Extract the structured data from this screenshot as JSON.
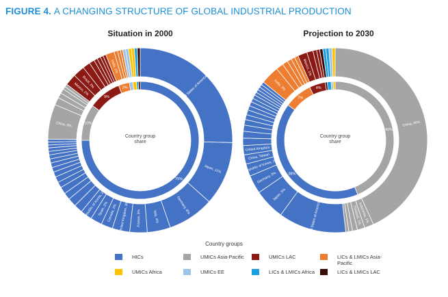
{
  "figure": {
    "number": "FIGURE 4.",
    "title": "A CHANGING STRUCTURE OF GLOBAL INDUSTRIAL PRODUCTION"
  },
  "colors": {
    "HICs": "#4472c4",
    "UMICs Asia-Pacific": "#a5a5a5",
    "UMICs LAC": "#8b1a14",
    "LICs & LMICs Asia-Pacific": "#ed7d31",
    "UMICs Africa": "#ffc000",
    "UMICs EE": "#9dc3e6",
    "LICs & LMICs Africa": "#1ba1e2",
    "LICs & LMICs LAC": "#3a0b07"
  },
  "legend": {
    "title": "Country groups",
    "items": [
      "HICs",
      "UMICs Asia-Pacific",
      "UMICs LAC",
      "LICs & LMICs Asia-Pacific",
      "UMICs Africa",
      "UMICs EE",
      "LICs & LMICs Africa",
      "LICs & LMICs LAC"
    ]
  },
  "chart_data": [
    {
      "type": "donut",
      "title": "Situation in 2000",
      "center_label": [
        "Country group",
        "share"
      ],
      "inner_ring": [
        {
          "group": "HICs",
          "value": 75,
          "label": "75%"
        },
        {
          "group": "UMICs Asia-Pacific",
          "value": 10,
          "label": "10%"
        },
        {
          "group": "UMICs LAC",
          "value": 9,
          "label": "9%"
        },
        {
          "group": "LICs & LMICs Asia-Pacific",
          "value": 3,
          "label": "3%"
        },
        {
          "group": "UMICs EE",
          "value": 1,
          "label": ""
        },
        {
          "group": "UMICs Africa",
          "value": 1,
          "label": ""
        },
        {
          "group": "LICs & LMICs Africa",
          "value": 0.5,
          "label": ""
        },
        {
          "group": "LICs & LMICs LAC",
          "value": 0.5,
          "label": ""
        }
      ],
      "outer_ring": [
        {
          "group": "HICs",
          "value": 25,
          "label": "United States of America, 25%"
        },
        {
          "group": "HICs",
          "value": 11,
          "label": "Japan, 11%"
        },
        {
          "group": "HICs",
          "value": 8,
          "label": "Germany, 8%"
        },
        {
          "group": "HICs",
          "value": 4,
          "label": "Italy, 4%"
        },
        {
          "group": "HICs",
          "value": 3,
          "label": "France, 3%"
        },
        {
          "group": "HICs",
          "value": 3,
          "label": "United Kingdom, 3%"
        },
        {
          "group": "HICs",
          "value": 2,
          "label": "Canada, 2%"
        },
        {
          "group": "HICs",
          "value": 2,
          "label": "Spain, 2%"
        },
        {
          "group": "HICs",
          "value": 2,
          "label": "Republic of Korea, 2%"
        },
        {
          "group": "HICs",
          "value": 1.5,
          "label": ""
        },
        {
          "group": "HICs",
          "value": 1.5,
          "label": ""
        },
        {
          "group": "HICs",
          "value": 1.2,
          "label": ""
        },
        {
          "group": "HICs",
          "value": 1.2,
          "label": ""
        },
        {
          "group": "HICs",
          "value": 1.0,
          "label": ""
        },
        {
          "group": "HICs",
          "value": 1.0,
          "label": ""
        },
        {
          "group": "HICs",
          "value": 0.9,
          "label": ""
        },
        {
          "group": "HICs",
          "value": 0.8,
          "label": ""
        },
        {
          "group": "HICs",
          "value": 0.8,
          "label": ""
        },
        {
          "group": "HICs",
          "value": 0.7,
          "label": ""
        },
        {
          "group": "HICs",
          "value": 0.7,
          "label": ""
        },
        {
          "group": "HICs",
          "value": 0.6,
          "label": ""
        },
        {
          "group": "HICs",
          "value": 0.6,
          "label": ""
        },
        {
          "group": "HICs",
          "value": 0.5,
          "label": ""
        },
        {
          "group": "HICs",
          "value": 0.5,
          "label": ""
        },
        {
          "group": "HICs",
          "value": 0.5,
          "label": ""
        },
        {
          "group": "UMICs Asia-Pacific",
          "value": 6,
          "label": "China, 6%"
        },
        {
          "group": "UMICs Asia-Pacific",
          "value": 1.3,
          "label": ""
        },
        {
          "group": "UMICs Asia-Pacific",
          "value": 0.9,
          "label": ""
        },
        {
          "group": "UMICs Asia-Pacific",
          "value": 0.8,
          "label": ""
        },
        {
          "group": "UMICs Asia-Pacific",
          "value": 0.5,
          "label": ""
        },
        {
          "group": "UMICs Asia-Pacific",
          "value": 0.5,
          "label": ""
        },
        {
          "group": "UMICs LAC",
          "value": 2,
          "label": "Mexico, 2%"
        },
        {
          "group": "UMICs LAC",
          "value": 2,
          "label": "Brazil, 2%"
        },
        {
          "group": "UMICs LAC",
          "value": 1.3,
          "label": ""
        },
        {
          "group": "UMICs LAC",
          "value": 0.9,
          "label": ""
        },
        {
          "group": "UMICs LAC",
          "value": 0.6,
          "label": ""
        },
        {
          "group": "UMICs LAC",
          "value": 0.6,
          "label": ""
        },
        {
          "group": "UMICs LAC",
          "value": 0.5,
          "label": ""
        },
        {
          "group": "UMICs LAC",
          "value": 0.5,
          "label": ""
        },
        {
          "group": "LICs & LMICs Asia-Pacific",
          "value": 1.5,
          "label": "India, 1%"
        },
        {
          "group": "LICs & LMICs Asia-Pacific",
          "value": 0.6,
          "label": ""
        },
        {
          "group": "LICs & LMICs Asia-Pacific",
          "value": 0.5,
          "label": ""
        },
        {
          "group": "LICs & LMICs Asia-Pacific",
          "value": 0.4,
          "label": ""
        },
        {
          "group": "UMICs EE",
          "value": 0.5,
          "label": ""
        },
        {
          "group": "UMICs EE",
          "value": 0.5,
          "label": ""
        },
        {
          "group": "UMICs Africa",
          "value": 0.5,
          "label": ""
        },
        {
          "group": "UMICs Africa",
          "value": 0.5,
          "label": ""
        },
        {
          "group": "LICs & LMICs Africa",
          "value": 0.5,
          "label": ""
        },
        {
          "group": "LICs & LMICs LAC",
          "value": 0.5,
          "label": ""
        }
      ]
    },
    {
      "type": "donut",
      "title": "Projection to 2030",
      "center_label": [
        "Country group",
        "share"
      ],
      "inner_ring": [
        {
          "group": "UMICs Asia-Pacific",
          "value": 40,
          "label": "40%"
        },
        {
          "group": "HICs",
          "value": 38,
          "label": "38%"
        },
        {
          "group": "LICs & LMICs Asia-Pacific",
          "value": 7,
          "label": "7%"
        },
        {
          "group": "UMICs LAC",
          "value": 4,
          "label": "4%"
        },
        {
          "group": "LICs & LMICs LAC",
          "value": 0.5,
          "label": ""
        },
        {
          "group": "LICs & LMICs Africa",
          "value": 1,
          "label": ""
        },
        {
          "group": "UMICs EE",
          "value": 0.5,
          "label": ""
        },
        {
          "group": "UMICs Africa",
          "value": 0.5,
          "label": ""
        }
      ],
      "outer_ring": [
        {
          "group": "UMICs Asia-Pacific",
          "value": 40,
          "label": "China, 40%"
        },
        {
          "group": "UMICs Asia-Pacific",
          "value": 1.5,
          "label": "Indonesia, 1%"
        },
        {
          "group": "UMICs Asia-Pacific",
          "value": 1.2,
          "label": "Thailand, 1%"
        },
        {
          "group": "UMICs Asia-Pacific",
          "value": 0.8,
          "label": ""
        },
        {
          "group": "UMICs Asia-Pacific",
          "value": 0.6,
          "label": ""
        },
        {
          "group": "UMICs Asia-Pacific",
          "value": 0.5,
          "label": ""
        },
        {
          "group": "HICs",
          "value": 11,
          "label": "United States of America, 11%"
        },
        {
          "group": "HICs",
          "value": 5,
          "label": "Japan, 5%"
        },
        {
          "group": "HICs",
          "value": 3,
          "label": "Germany, 3%"
        },
        {
          "group": "HICs",
          "value": 2,
          "label": "Republic of Korea, 2%"
        },
        {
          "group": "HICs",
          "value": 1.5,
          "label": "China, Taiwan"
        },
        {
          "group": "HICs",
          "value": 1.5,
          "label": "United Kingdom"
        },
        {
          "group": "HICs",
          "value": 1.2,
          "label": ""
        },
        {
          "group": "HICs",
          "value": 1.1,
          "label": ""
        },
        {
          "group": "HICs",
          "value": 1.0,
          "label": ""
        },
        {
          "group": "HICs",
          "value": 0.9,
          "label": ""
        },
        {
          "group": "HICs",
          "value": 0.8,
          "label": ""
        },
        {
          "group": "HICs",
          "value": 0.8,
          "label": ""
        },
        {
          "group": "HICs",
          "value": 0.7,
          "label": ""
        },
        {
          "group": "HICs",
          "value": 0.7,
          "label": ""
        },
        {
          "group": "HICs",
          "value": 0.6,
          "label": ""
        },
        {
          "group": "HICs",
          "value": 0.6,
          "label": ""
        },
        {
          "group": "HICs",
          "value": 0.5,
          "label": ""
        },
        {
          "group": "HICs",
          "value": 0.5,
          "label": ""
        },
        {
          "group": "HICs",
          "value": 0.5,
          "label": ""
        },
        {
          "group": "HICs",
          "value": 0.5,
          "label": ""
        },
        {
          "group": "HICs",
          "value": 0.5,
          "label": ""
        },
        {
          "group": "LICs & LMICs Asia-Pacific",
          "value": 3,
          "label": "India, 3%"
        },
        {
          "group": "LICs & LMICs Asia-Pacific",
          "value": 1.2,
          "label": ""
        },
        {
          "group": "LICs & LMICs Asia-Pacific",
          "value": 0.9,
          "label": ""
        },
        {
          "group": "LICs & LMICs Asia-Pacific",
          "value": 0.7,
          "label": ""
        },
        {
          "group": "LICs & LMICs Asia-Pacific",
          "value": 0.6,
          "label": ""
        },
        {
          "group": "LICs & LMICs Asia-Pacific",
          "value": 0.6,
          "label": ""
        },
        {
          "group": "UMICs LAC",
          "value": 1.5,
          "label": "Mexico, 1%"
        },
        {
          "group": "UMICs LAC",
          "value": 1.0,
          "label": ""
        },
        {
          "group": "UMICs LAC",
          "value": 0.6,
          "label": ""
        },
        {
          "group": "UMICs LAC",
          "value": 0.5,
          "label": ""
        },
        {
          "group": "LICs & LMICs LAC",
          "value": 0.5,
          "label": ""
        },
        {
          "group": "LICs & LMICs Africa",
          "value": 0.5,
          "label": ""
        },
        {
          "group": "LICs & LMICs Africa",
          "value": 0.5,
          "label": ""
        },
        {
          "group": "UMICs EE",
          "value": 0.5,
          "label": ""
        },
        {
          "group": "UMICs Africa",
          "value": 0.5,
          "label": ""
        }
      ]
    }
  ]
}
